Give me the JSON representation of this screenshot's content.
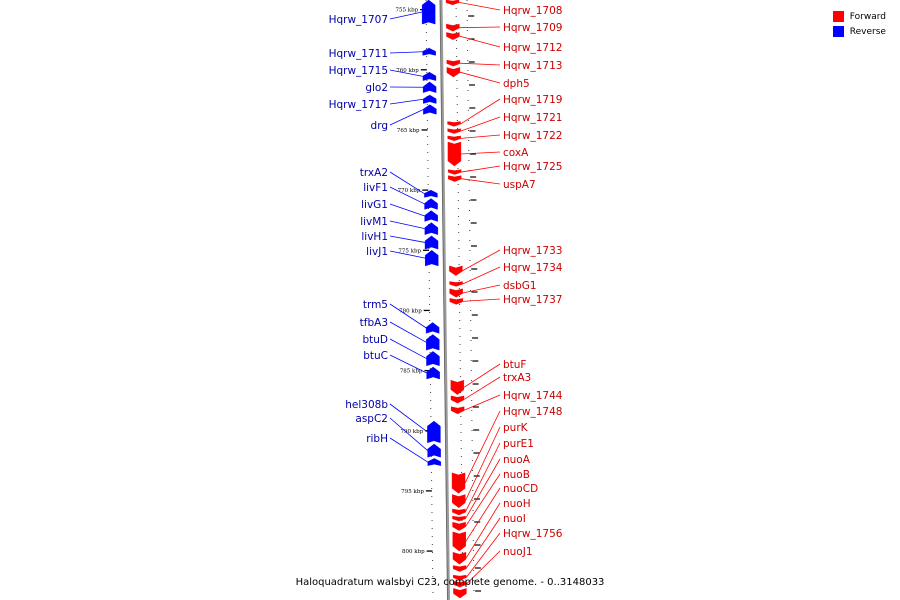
{
  "title": "Haloquadratum walsbyi C23, complete genome. - 0..3148033",
  "legend": {
    "items": [
      {
        "label": "Forward",
        "color": "#ff0000"
      },
      {
        "label": "Reverse",
        "color": "#0000ff"
      }
    ]
  },
  "colors": {
    "forward": "#ff0000",
    "reverse": "#0000ff",
    "forward_label": "#cc0000",
    "reverse_label": "#0000aa",
    "backbone": "#9a9a9a"
  },
  "scale": {
    "unit": "kbp",
    "start_kbp": 754.2,
    "end_kbp": 803.9,
    "ticks": [
      {
        "label": "755 kbp",
        "kbp": 755
      },
      {
        "label": "760 kbp",
        "kbp": 760
      },
      {
        "label": "765 kbp",
        "kbp": 765
      },
      {
        "label": "770 kbp",
        "kbp": 770
      },
      {
        "label": "775 kbp",
        "kbp": 775
      },
      {
        "label": "780 kbp",
        "kbp": 780
      },
      {
        "label": "785 kbp",
        "kbp": 785
      },
      {
        "label": "790 kbp",
        "kbp": 790
      },
      {
        "label": "795 kbp",
        "kbp": 795
      },
      {
        "label": "800 kbp",
        "kbp": 800
      }
    ]
  },
  "reverse_genes": [
    {
      "name": "Hqrw_1707",
      "start_kbp": 754.2,
      "end_kbp": 756.2
    },
    {
      "name": "Hqrw_1711",
      "start_kbp": 758.2,
      "end_kbp": 758.8
    },
    {
      "name": "Hqrw_1715",
      "start_kbp": 760.2,
      "end_kbp": 760.9
    },
    {
      "name": "glo2",
      "start_kbp": 761.0,
      "end_kbp": 761.9
    },
    {
      "name": "Hqrw_1717",
      "start_kbp": 762.1,
      "end_kbp": 762.8
    },
    {
      "name": "drg",
      "start_kbp": 762.9,
      "end_kbp": 763.7
    },
    {
      "name": "trxA2",
      "start_kbp": 770.0,
      "end_kbp": 770.6
    },
    {
      "name": "livF1",
      "start_kbp": 770.7,
      "end_kbp": 771.6
    },
    {
      "name": "livG1",
      "start_kbp": 771.7,
      "end_kbp": 772.6
    },
    {
      "name": "livM1",
      "start_kbp": 772.7,
      "end_kbp": 773.7
    },
    {
      "name": "livH1",
      "start_kbp": 773.8,
      "end_kbp": 774.9
    },
    {
      "name": "livJ1",
      "start_kbp": 775.0,
      "end_kbp": 776.3
    },
    {
      "name": "trm5",
      "start_kbp": 781.0,
      "end_kbp": 781.9
    },
    {
      "name": "tfbA3",
      "start_kbp": 782.0,
      "end_kbp": 783.3
    },
    {
      "name": "btuD",
      "start_kbp": 783.4,
      "end_kbp": 784.6
    },
    {
      "name": "btuC",
      "start_kbp": 784.7,
      "end_kbp": 785.7
    },
    {
      "name": "hel308b",
      "start_kbp": 789.2,
      "end_kbp": 791.0
    },
    {
      "name": "aspC2",
      "start_kbp": 791.1,
      "end_kbp": 792.2
    },
    {
      "name": "ribH",
      "start_kbp": 792.3,
      "end_kbp": 792.9
    }
  ],
  "forward_genes": [
    {
      "name": "Hqrw_1708",
      "start_kbp": 754.2,
      "end_kbp": 754.6
    },
    {
      "name": "Hqrw_1709",
      "start_kbp": 756.2,
      "end_kbp": 756.8
    },
    {
      "name": "Hqrw_1712",
      "start_kbp": 756.9,
      "end_kbp": 757.5
    },
    {
      "name": "Hqrw_1713",
      "start_kbp": 759.2,
      "end_kbp": 759.7
    },
    {
      "name": "dph5",
      "start_kbp": 759.8,
      "end_kbp": 760.6
    },
    {
      "name": "Hqrw_1719",
      "start_kbp": 764.3,
      "end_kbp": 764.7
    },
    {
      "name": "Hqrw_1721",
      "start_kbp": 764.9,
      "end_kbp": 765.3
    },
    {
      "name": "Hqrw_1722",
      "start_kbp": 765.5,
      "end_kbp": 765.9
    },
    {
      "name": "coxA",
      "start_kbp": 766.0,
      "end_kbp": 768.0
    },
    {
      "name": "Hqrw_1725",
      "start_kbp": 768.3,
      "end_kbp": 768.7
    },
    {
      "name": "uspA7",
      "start_kbp": 768.8,
      "end_kbp": 769.3
    },
    {
      "name": "Hqrw_1733",
      "start_kbp": 776.3,
      "end_kbp": 777.1
    },
    {
      "name": "Hqrw_1734",
      "start_kbp": 777.6,
      "end_kbp": 778.0
    },
    {
      "name": "dsbG1",
      "start_kbp": 778.2,
      "end_kbp": 778.9
    },
    {
      "name": "Hqrw_1737",
      "start_kbp": 779.0,
      "end_kbp": 779.5
    },
    {
      "name": "btuF",
      "start_kbp": 785.8,
      "end_kbp": 787.0
    },
    {
      "name": "trxA3",
      "start_kbp": 787.1,
      "end_kbp": 787.7
    },
    {
      "name": "Hqrw_1744",
      "start_kbp": 788.0,
      "end_kbp": 788.6
    },
    {
      "name": "Hqrw_1748",
      "start_kbp": 793.5,
      "end_kbp": 795.2
    },
    {
      "name": "purK",
      "start_kbp": 795.3,
      "end_kbp": 796.4
    },
    {
      "name": "purE1",
      "start_kbp": 796.5,
      "end_kbp": 797.0
    },
    {
      "name": "nuoA",
      "start_kbp": 797.1,
      "end_kbp": 797.5
    },
    {
      "name": "nuoB",
      "start_kbp": 797.6,
      "end_kbp": 798.3
    },
    {
      "name": "nuoCD",
      "start_kbp": 798.4,
      "end_kbp": 800.0
    },
    {
      "name": "nuoH",
      "start_kbp": 800.1,
      "end_kbp": 801.1
    },
    {
      "name": "nuoI",
      "start_kbp": 801.2,
      "end_kbp": 801.7
    },
    {
      "name": "Hqrw_1756",
      "start_kbp": 802.0,
      "end_kbp": 802.4
    },
    {
      "name": "nuoJ1",
      "start_kbp": 802.5,
      "end_kbp": 803.0
    },
    {
      "name": "",
      "start_kbp": 803.1,
      "end_kbp": 803.9
    }
  ]
}
